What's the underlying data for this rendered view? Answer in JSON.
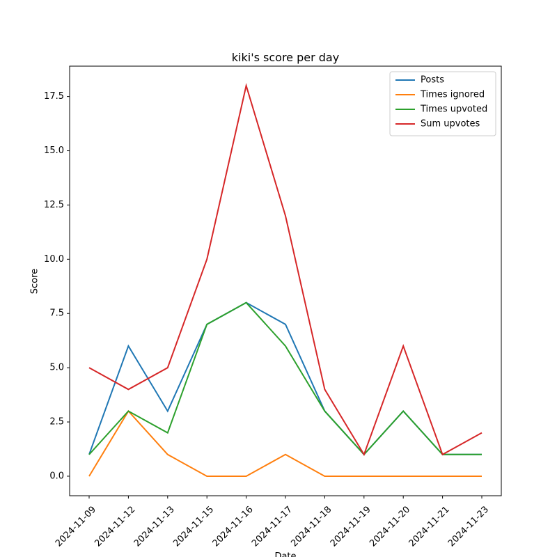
{
  "chart_data": {
    "type": "line",
    "title": "kiki's score per day",
    "xlabel": "Date",
    "ylabel": "Score",
    "categories": [
      "2024-11-09",
      "2024-11-12",
      "2024-11-13",
      "2024-11-15",
      "2024-11-16",
      "2024-11-17",
      "2024-11-18",
      "2024-11-19",
      "2024-11-20",
      "2024-11-21",
      "2024-11-23"
    ],
    "series": [
      {
        "name": "Posts",
        "color": "#1f77b4",
        "values": [
          1,
          6,
          3,
          7,
          8,
          7,
          3,
          1,
          3,
          1,
          1
        ]
      },
      {
        "name": "Times ignored",
        "color": "#ff7f0e",
        "values": [
          0,
          3,
          1,
          0,
          0,
          1,
          0,
          0,
          0,
          0,
          0
        ]
      },
      {
        "name": "Times upvoted",
        "color": "#2ca02c",
        "values": [
          1,
          3,
          2,
          7,
          8,
          6,
          3,
          1,
          3,
          1,
          1
        ]
      },
      {
        "name": "Sum upvotes",
        "color": "#d62728",
        "values": [
          5,
          4,
          5,
          10,
          18,
          12,
          4,
          1,
          6,
          1,
          2
        ]
      }
    ],
    "ylim": [
      -0.9,
      18.9
    ],
    "yticks": [
      {
        "value": 0,
        "label": "0.0"
      },
      2.5,
      {
        "value": 5,
        "label": "5.0"
      },
      7.5,
      {
        "value": 10,
        "label": "10.0"
      },
      12.5,
      {
        "value": 15,
        "label": "15.0"
      },
      17.5
    ],
    "legend": "upper right",
    "grid": false
  }
}
